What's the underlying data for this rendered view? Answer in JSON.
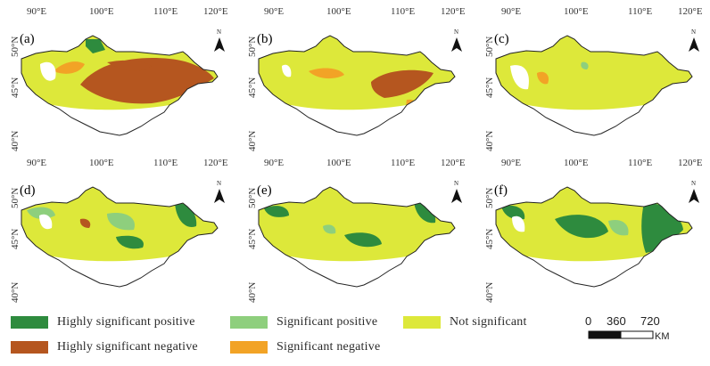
{
  "panels": [
    {
      "id": "a",
      "label": "(a)"
    },
    {
      "id": "b",
      "label": "(b)"
    },
    {
      "id": "c",
      "label": "(c)"
    },
    {
      "id": "d",
      "label": "(d)"
    },
    {
      "id": "e",
      "label": "(e)"
    },
    {
      "id": "f",
      "label": "(f)"
    }
  ],
  "axes": {
    "longitude_ticks": [
      "90°E",
      "100°E",
      "110°E",
      "120°E"
    ],
    "latitude_ticks": [
      "50°N",
      "45°N",
      "40°N"
    ]
  },
  "north_arrow": {
    "label": "N"
  },
  "legend": {
    "items": [
      {
        "key": "highly_sig_pos",
        "label": "Highly significant positive",
        "color": "#2e8b3e"
      },
      {
        "key": "sig_pos",
        "label": "Significant positive",
        "color": "#8ecf7d"
      },
      {
        "key": "not_sig",
        "label": "Not significant",
        "color": "#dde83a"
      },
      {
        "key": "highly_sig_neg",
        "label": "Highly significant negative",
        "color": "#b5561f"
      },
      {
        "key": "sig_neg",
        "label": "Significant negative",
        "color": "#f2a326"
      }
    ]
  },
  "scale_bar": {
    "ticks": [
      "0",
      "360",
      "720"
    ],
    "unit": "KM"
  },
  "colors": {
    "no_data": "#ffffff",
    "outline": "#222222"
  }
}
